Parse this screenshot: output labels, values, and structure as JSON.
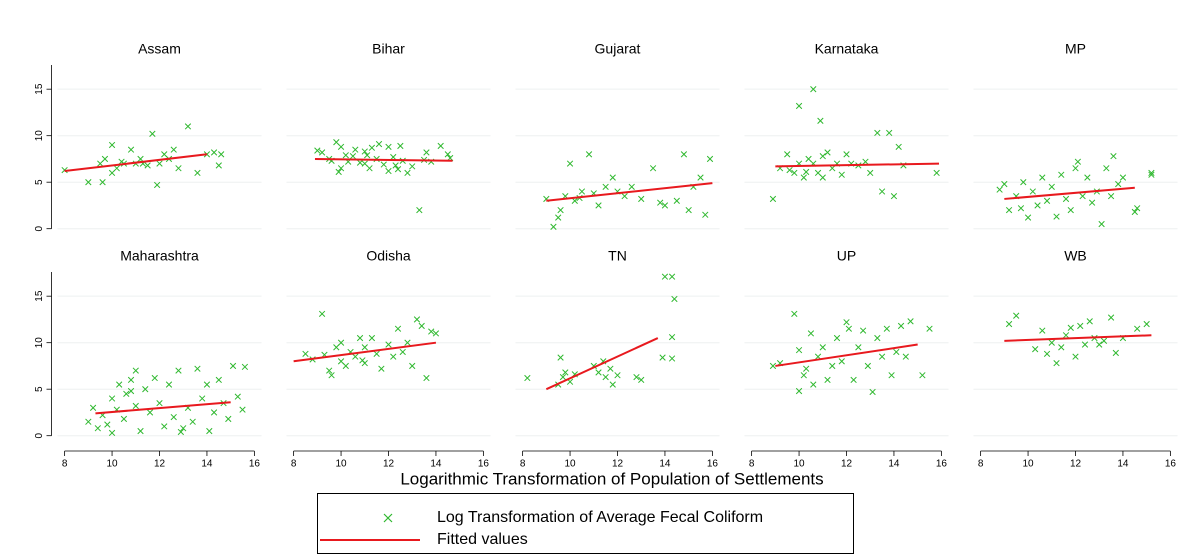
{
  "chart_data": {
    "type": "scatter",
    "xlabel": "Logarithmic Transformation of Population of Settlements",
    "xlim": [
      7.7,
      16.3
    ],
    "ylim": [
      -1,
      17.6
    ],
    "xticks": [
      8,
      10,
      12,
      14,
      16
    ],
    "yticks": [
      0,
      5,
      10,
      15
    ],
    "grid": true,
    "series": [
      {
        "name": "Log Transformation of Average Fecal Coliform",
        "color": "#2fb82f"
      },
      {
        "name": "Fitted values",
        "color": "#e8191e"
      }
    ],
    "panels": [
      {
        "title": "Assam",
        "series": [
          {
            "x": [
              8,
              9,
              9.5,
              9.6,
              9.7,
              10,
              10,
              10.2,
              10.5,
              10.8,
              11,
              11.2,
              11.5,
              11.7,
              11.9,
              12,
              12.2,
              12.4,
              12.6,
              12.8,
              13.2,
              13.6,
              14,
              14.3,
              14.5,
              14.6,
              10.4,
              11.3
            ],
            "values": [
              6.3,
              5,
              7,
              5,
              7.5,
              6,
              9,
              6.5,
              7,
              8.5,
              7,
              7.5,
              6.8,
              10.2,
              4.7,
              7,
              8,
              7.5,
              8.5,
              6.5,
              11,
              6,
              8,
              8.2,
              6.8,
              8,
              7.2,
              7
            ]
          },
          {
            "x": [
              8,
              14
            ],
            "values": [
              6.2,
              8
            ]
          }
        ]
      },
      {
        "title": "Bihar",
        "series": [
          {
            "x": [
              9,
              9.2,
              9.5,
              9.6,
              9.8,
              10,
              10,
              10.2,
              10.3,
              10.5,
              10.6,
              10.8,
              11,
              11,
              11.2,
              11.3,
              11.5,
              11.6,
              11.8,
              12,
              12,
              12.2,
              12.3,
              12.5,
              12.6,
              12.8,
              13,
              13.3,
              13.5,
              13.6,
              13.8,
              14.2,
              14.5,
              14.6,
              9.9,
              11.1,
              12.4
            ],
            "values": [
              8.4,
              8.2,
              7.5,
              7.3,
              9.3,
              6.5,
              8.8,
              7.9,
              7.2,
              7.8,
              8.5,
              7.1,
              8.3,
              7.0,
              6.5,
              8.7,
              7.5,
              9.1,
              6.9,
              8.8,
              6.2,
              7.7,
              6.8,
              8.9,
              7.3,
              6.0,
              6.7,
              2.0,
              7.4,
              8.2,
              7.2,
              8.9,
              8.0,
              7.6,
              6.1,
              7.9,
              6.4
            ]
          },
          {
            "x": [
              8.9,
              14.7
            ],
            "values": [
              7.5,
              7.3
            ]
          }
        ]
      },
      {
        "title": "Gujarat",
        "series": [
          {
            "x": [
              9,
              9.3,
              9.5,
              9.6,
              9.8,
              10,
              10.2,
              10.5,
              10.8,
              11,
              11.2,
              11.5,
              11.8,
              12,
              12.3,
              12.6,
              13,
              13.5,
              13.8,
              14,
              14.5,
              14.8,
              15,
              15.2,
              15.5,
              15.7,
              15.9,
              10.4
            ],
            "values": [
              3.2,
              0.2,
              1.2,
              2,
              3.5,
              7,
              3,
              4,
              8,
              3.8,
              2.5,
              4.5,
              5.5,
              4,
              3.5,
              4.5,
              3.2,
              6.5,
              2.8,
              2.5,
              3,
              8,
              2,
              4.5,
              5.5,
              1.5,
              7.5,
              3.3
            ]
          },
          {
            "x": [
              9,
              16
            ],
            "values": [
              3,
              4.9
            ]
          }
        ]
      },
      {
        "title": "Karnataka",
        "series": [
          {
            "x": [
              8.9,
              9.2,
              9.5,
              9.8,
              10,
              10,
              10.2,
              10.4,
              10.6,
              10.6,
              10.8,
              10.9,
              11,
              11,
              11.2,
              11.4,
              11.6,
              11.8,
              12,
              12.2,
              12.5,
              12.8,
              13,
              13.3,
              13.5,
              13.8,
              14,
              14.2,
              14.4,
              15.8,
              9.6,
              10.3
            ],
            "values": [
              3.2,
              6.5,
              8,
              6,
              13.2,
              7,
              5.5,
              7.5,
              15,
              7,
              6,
              11.6,
              7.8,
              5.5,
              8.2,
              6.5,
              7,
              5.8,
              8,
              7,
              6.8,
              7.2,
              6,
              10.3,
              4,
              10.3,
              3.5,
              8.8,
              6.8,
              6,
              6.3,
              6.1
            ]
          },
          {
            "x": [
              9,
              15.9
            ],
            "values": [
              6.7,
              7
            ]
          }
        ]
      },
      {
        "title": "MP",
        "series": [
          {
            "x": [
              8.8,
              9,
              9.2,
              9.5,
              9.7,
              9.8,
              10,
              10.2,
              10.4,
              10.6,
              10.8,
              11,
              11.2,
              11.4,
              11.6,
              11.8,
              12,
              12.1,
              12.3,
              12.5,
              12.7,
              12.9,
              13.1,
              13.3,
              13.5,
              13.6,
              13.8,
              14,
              14.5,
              14.6,
              15.2,
              15.2
            ],
            "values": [
              4.2,
              4.8,
              2,
              3.5,
              2.2,
              5,
              1.2,
              4,
              2.5,
              5.5,
              3,
              4.5,
              1.3,
              5.8,
              3.2,
              2,
              6.5,
              7.2,
              3.5,
              5.5,
              2.8,
              4,
              0.5,
              6.5,
              3.5,
              7.8,
              4.8,
              5.5,
              1.8,
              2.2,
              6,
              5.8
            ]
          },
          {
            "x": [
              9,
              14.5
            ],
            "values": [
              3.2,
              4.4
            ]
          }
        ]
      },
      {
        "title": "Maharashtra",
        "series": [
          {
            "x": [
              9,
              9.2,
              9.4,
              9.6,
              9.8,
              10,
              10,
              10.2,
              10.3,
              10.5,
              10.6,
              10.8,
              11,
              11,
              11.2,
              11.4,
              11.6,
              11.8,
              12,
              12.2,
              12.4,
              12.6,
              12.8,
              13,
              13.2,
              13.4,
              13.6,
              13.8,
              14,
              14.1,
              14.3,
              14.5,
              14.7,
              14.9,
              15.1,
              15.3,
              15.5,
              15.6,
              10.8,
              12.9
            ],
            "values": [
              1.5,
              3,
              0.8,
              2.2,
              1.2,
              4,
              0.3,
              2.8,
              5.5,
              1.8,
              4.5,
              6,
              3.2,
              7,
              0.5,
              5,
              2.5,
              6.2,
              3.5,
              1,
              5.5,
              2,
              7,
              0.8,
              3,
              1.5,
              7.2,
              4,
              5.5,
              0.5,
              2.5,
              6,
              3.5,
              1.8,
              7.5,
              4.2,
              2.8,
              7.4,
              4.8,
              0.4
            ]
          },
          {
            "x": [
              9.3,
              15
            ],
            "values": [
              2.4,
              3.6
            ]
          }
        ]
      },
      {
        "title": "Odisha",
        "series": [
          {
            "x": [
              8.5,
              8.8,
              9.2,
              9.5,
              9.6,
              9.8,
              10,
              10,
              10.2,
              10.4,
              10.6,
              10.8,
              11,
              11,
              11.3,
              11.5,
              11.7,
              12,
              12.2,
              12.4,
              12.6,
              12.8,
              13,
              13.2,
              13.4,
              13.6,
              13.8,
              14,
              9.3,
              10.9
            ],
            "values": [
              8.8,
              8.2,
              13.1,
              7,
              6.5,
              9.5,
              8,
              10,
              7.5,
              9,
              8.5,
              10.5,
              7.8,
              9.5,
              10.5,
              8.8,
              7.2,
              9.8,
              8.5,
              11.5,
              9,
              10,
              7.5,
              12.5,
              11.8,
              6.2,
              11.2,
              11,
              8.7,
              8.1
            ]
          },
          {
            "x": [
              8,
              14
            ],
            "values": [
              8,
              10
            ]
          }
        ]
      },
      {
        "title": "TN",
        "series": [
          {
            "x": [
              8.2,
              9.5,
              9.6,
              9.7,
              9.8,
              10,
              10.2,
              11,
              11.2,
              11.4,
              11.5,
              11.7,
              11.8,
              12,
              12.8,
              13,
              13.9,
              14,
              14.3,
              14.4,
              14.3,
              14.3
            ],
            "values": [
              6.2,
              5.5,
              8.4,
              6.3,
              6.8,
              5.8,
              6.6,
              7.5,
              6.8,
              8,
              6.3,
              7.2,
              5.5,
              6.5,
              6.3,
              6,
              8.4,
              17.1,
              17.1,
              14.7,
              10.6,
              8.3
            ]
          },
          {
            "x": [
              9,
              13.7
            ],
            "values": [
              5,
              10.5
            ]
          }
        ]
      },
      {
        "title": "UP",
        "series": [
          {
            "x": [
              8.9,
              9.2,
              9.8,
              10,
              10,
              10.2,
              10.5,
              10.6,
              10.8,
              11,
              11.2,
              11.4,
              11.6,
              11.8,
              12,
              12.1,
              12.3,
              12.5,
              12.7,
              12.9,
              13.1,
              13.3,
              13.5,
              13.7,
              13.9,
              14.1,
              14.3,
              14.5,
              14.7,
              15.2,
              15.5,
              10.3
            ],
            "values": [
              7.5,
              7.8,
              13.1,
              4.8,
              9.2,
              6.5,
              11,
              5.5,
              8.5,
              9.5,
              6,
              7.5,
              10.5,
              8,
              12.2,
              11.5,
              6,
              9.5,
              11.3,
              7.5,
              4.7,
              10.5,
              8.5,
              11.5,
              6.5,
              9,
              11.8,
              8.5,
              12.3,
              6.5,
              11.5,
              7.2
            ]
          },
          {
            "x": [
              9,
              15
            ],
            "values": [
              7.5,
              9.8
            ]
          }
        ]
      },
      {
        "title": "WB",
        "series": [
          {
            "x": [
              9.2,
              9.5,
              10.3,
              10.6,
              10.8,
              11,
              11.2,
              11.4,
              11.6,
              11.8,
              12,
              12.2,
              12.4,
              12.6,
              12.8,
              13,
              13.2,
              13.5,
              13.7,
              14,
              14.6,
              15
            ],
            "values": [
              12,
              12.9,
              9.3,
              11.3,
              8.8,
              10,
              7.8,
              9.5,
              10.8,
              11.6,
              8.5,
              11.8,
              9.8,
              12.3,
              10.5,
              9.8,
              10.2,
              12.7,
              8.9,
              10.5,
              11.5,
              12
            ]
          },
          {
            "x": [
              9,
              15.2
            ],
            "values": [
              10.2,
              10.8
            ]
          }
        ]
      }
    ]
  }
}
